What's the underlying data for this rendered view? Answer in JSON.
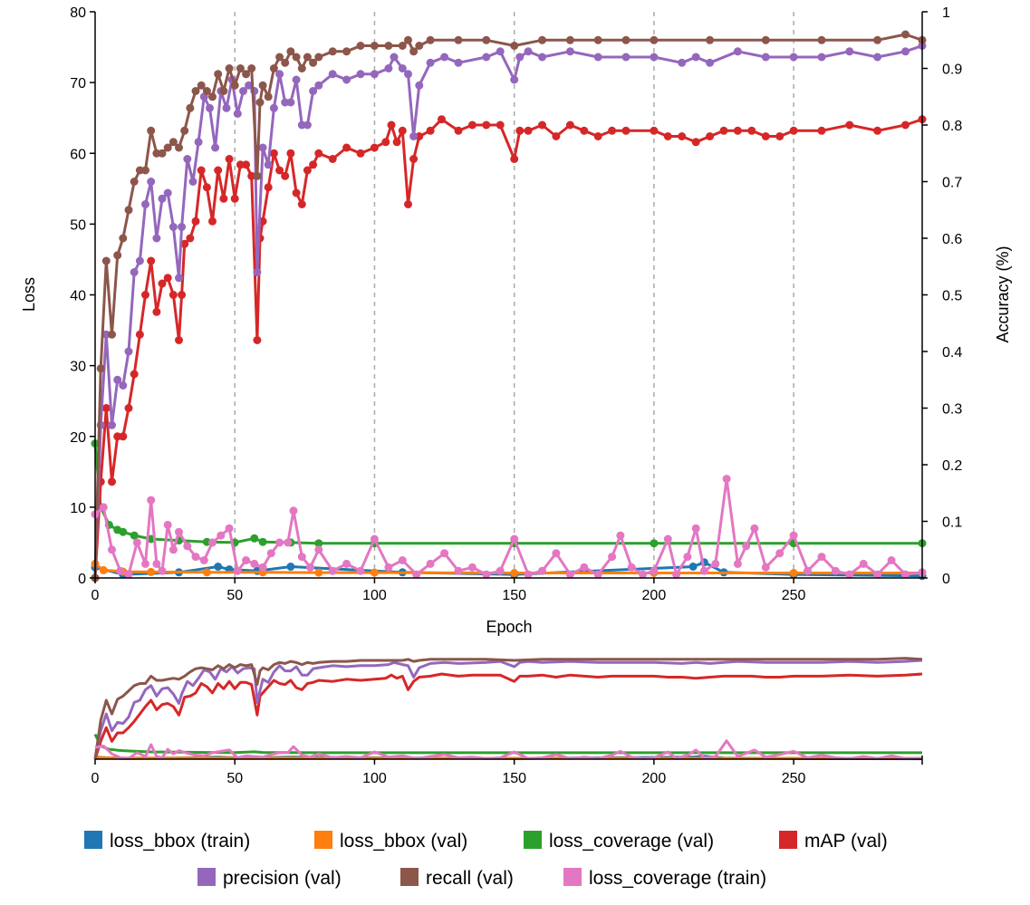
{
  "chart_data": {
    "type": "line",
    "xlabel": "Epoch",
    "ylabel_left": "Loss",
    "ylabel_right": "Accuracy (%)",
    "xlim": [
      0,
      296
    ],
    "ylim_left": [
      0,
      80
    ],
    "ylim_right": [
      0,
      1
    ],
    "x_ticks": [
      0,
      50,
      100,
      150,
      200,
      250
    ],
    "y_left_ticks": [
      0,
      10,
      20,
      30,
      40,
      50,
      60,
      70,
      80
    ],
    "y_right_ticks": [
      0,
      0.1,
      0.2,
      0.3,
      0.4,
      0.5,
      0.6,
      0.7,
      0.8,
      0.9,
      1
    ],
    "y_right_tick_labels": [
      "0",
      "0.1",
      "0.2",
      "0.3",
      "0.4",
      "0.5",
      "0.6",
      "0.7",
      "0.8",
      "0.9",
      "1"
    ],
    "x_gridlines": [
      50,
      100,
      150,
      200,
      250
    ],
    "legend_position": "bottom",
    "series": [
      {
        "name": "loss_bbox (train)",
        "color": "#1f77b4",
        "axis": "left",
        "x": [
          0,
          10,
          30,
          44,
          48,
          58,
          70,
          110,
          150,
          214,
          218,
          225,
          250,
          296
        ],
        "y": [
          1.5,
          0.5,
          0.8,
          1.6,
          1.2,
          1.0,
          1.6,
          0.8,
          0.5,
          1.6,
          2.2,
          0.8,
          0.5,
          0.3
        ]
      },
      {
        "name": "loss_bbox (val)",
        "color": "#ff7f0e",
        "axis": "left",
        "x": [
          0,
          3,
          10,
          20,
          40,
          60,
          80,
          100,
          150,
          200,
          250,
          296
        ],
        "y": [
          2.0,
          1.1,
          0.9,
          0.85,
          0.8,
          0.8,
          0.75,
          0.75,
          0.7,
          0.7,
          0.7,
          0.7
        ]
      },
      {
        "name": "loss_coverage (val)",
        "color": "#2ca02c",
        "axis": "left",
        "x": [
          0,
          2,
          5,
          8,
          10,
          14,
          20,
          30,
          40,
          50,
          57,
          60,
          70,
          80,
          100,
          150,
          200,
          250,
          296
        ],
        "y": [
          19.0,
          10.0,
          7.5,
          6.8,
          6.5,
          6.0,
          5.5,
          5.3,
          5.1,
          5.0,
          5.6,
          5.1,
          5.0,
          4.9,
          4.9,
          4.9,
          4.9,
          4.9,
          4.9
        ]
      },
      {
        "name": "mAP (val)",
        "color": "#d62728",
        "axis": "right",
        "x": [
          0,
          2,
          4,
          6,
          8,
          10,
          12,
          14,
          16,
          18,
          20,
          22,
          24,
          26,
          28,
          30,
          31,
          32,
          34,
          36,
          38,
          40,
          42,
          44,
          46,
          48,
          50,
          52,
          54,
          56,
          58,
          59,
          60,
          62,
          64,
          66,
          68,
          70,
          72,
          74,
          76,
          78,
          80,
          85,
          90,
          95,
          100,
          104,
          106,
          108,
          110,
          112,
          114,
          116,
          120,
          124,
          130,
          135,
          140,
          145,
          150,
          152,
          155,
          160,
          165,
          170,
          175,
          180,
          185,
          190,
          200,
          205,
          210,
          215,
          220,
          225,
          230,
          235,
          240,
          245,
          250,
          260,
          270,
          280,
          290,
          296
        ],
        "y": [
          0.0,
          0.17,
          0.3,
          0.17,
          0.25,
          0.25,
          0.3,
          0.36,
          0.43,
          0.5,
          0.56,
          0.47,
          0.52,
          0.53,
          0.5,
          0.42,
          0.5,
          0.59,
          0.6,
          0.63,
          0.72,
          0.69,
          0.63,
          0.72,
          0.67,
          0.74,
          0.67,
          0.73,
          0.73,
          0.71,
          0.42,
          0.6,
          0.63,
          0.69,
          0.75,
          0.72,
          0.71,
          0.75,
          0.68,
          0.66,
          0.72,
          0.73,
          0.75,
          0.74,
          0.76,
          0.75,
          0.76,
          0.77,
          0.8,
          0.77,
          0.79,
          0.66,
          0.74,
          0.78,
          0.79,
          0.81,
          0.79,
          0.8,
          0.8,
          0.8,
          0.74,
          0.79,
          0.79,
          0.8,
          0.78,
          0.8,
          0.79,
          0.78,
          0.79,
          0.79,
          0.79,
          0.78,
          0.78,
          0.77,
          0.78,
          0.79,
          0.79,
          0.79,
          0.78,
          0.78,
          0.79,
          0.79,
          0.8,
          0.79,
          0.8,
          0.81
        ]
      },
      {
        "name": "precision (val)",
        "color": "#9467bd",
        "axis": "right",
        "x": [
          0,
          2,
          4,
          6,
          8,
          10,
          12,
          14,
          16,
          18,
          20,
          22,
          24,
          26,
          28,
          30,
          31,
          33,
          35,
          37,
          39,
          41,
          43,
          45,
          47,
          49,
          51,
          53,
          55,
          57,
          58,
          60,
          62,
          64,
          66,
          68,
          70,
          72,
          74,
          76,
          78,
          80,
          85,
          90,
          95,
          100,
          105,
          107,
          110,
          112,
          114,
          116,
          120,
          125,
          130,
          140,
          145,
          150,
          152,
          155,
          160,
          170,
          180,
          190,
          200,
          210,
          215,
          220,
          230,
          240,
          250,
          260,
          270,
          280,
          290,
          296
        ],
        "y": [
          0.0,
          0.27,
          0.43,
          0.27,
          0.35,
          0.34,
          0.4,
          0.54,
          0.56,
          0.66,
          0.7,
          0.6,
          0.67,
          0.68,
          0.62,
          0.53,
          0.62,
          0.74,
          0.7,
          0.77,
          0.85,
          0.83,
          0.76,
          0.86,
          0.83,
          0.88,
          0.82,
          0.86,
          0.87,
          0.86,
          0.54,
          0.76,
          0.73,
          0.83,
          0.89,
          0.84,
          0.84,
          0.88,
          0.8,
          0.8,
          0.86,
          0.87,
          0.89,
          0.88,
          0.89,
          0.89,
          0.9,
          0.92,
          0.9,
          0.89,
          0.78,
          0.87,
          0.91,
          0.92,
          0.91,
          0.92,
          0.93,
          0.88,
          0.92,
          0.93,
          0.92,
          0.93,
          0.92,
          0.92,
          0.92,
          0.91,
          0.92,
          0.91,
          0.93,
          0.92,
          0.92,
          0.92,
          0.93,
          0.92,
          0.93,
          0.94
        ]
      },
      {
        "name": "recall (val)",
        "color": "#8c564b",
        "axis": "right",
        "x": [
          0,
          2,
          4,
          6,
          8,
          10,
          12,
          14,
          16,
          18,
          20,
          22,
          24,
          26,
          28,
          30,
          32,
          34,
          36,
          38,
          40,
          42,
          44,
          46,
          48,
          50,
          52,
          54,
          56,
          58,
          59,
          60,
          62,
          64,
          66,
          68,
          70,
          72,
          74,
          76,
          78,
          80,
          85,
          90,
          95,
          100,
          105,
          110,
          112,
          114,
          116,
          120,
          130,
          140,
          150,
          160,
          170,
          180,
          190,
          200,
          220,
          240,
          260,
          280,
          290,
          296
        ],
        "y": [
          0.0,
          0.37,
          0.56,
          0.43,
          0.57,
          0.6,
          0.65,
          0.7,
          0.72,
          0.72,
          0.79,
          0.75,
          0.75,
          0.76,
          0.77,
          0.76,
          0.79,
          0.83,
          0.86,
          0.87,
          0.86,
          0.85,
          0.89,
          0.86,
          0.9,
          0.87,
          0.9,
          0.89,
          0.9,
          0.71,
          0.84,
          0.87,
          0.85,
          0.9,
          0.92,
          0.91,
          0.93,
          0.92,
          0.9,
          0.92,
          0.91,
          0.92,
          0.93,
          0.93,
          0.94,
          0.94,
          0.94,
          0.94,
          0.95,
          0.93,
          0.94,
          0.95,
          0.95,
          0.95,
          0.94,
          0.95,
          0.95,
          0.95,
          0.95,
          0.95,
          0.95,
          0.95,
          0.95,
          0.95,
          0.96,
          0.95
        ]
      },
      {
        "name": "loss_coverage (train)",
        "color": "#e377c2",
        "axis": "left",
        "x": [
          0,
          3,
          6,
          9,
          12,
          15,
          18,
          20,
          22,
          24,
          26,
          28,
          30,
          33,
          36,
          39,
          42,
          45,
          48,
          51,
          54,
          57,
          60,
          63,
          66,
          69,
          71,
          74,
          77,
          80,
          85,
          90,
          95,
          100,
          105,
          110,
          115,
          120,
          125,
          130,
          135,
          140,
          145,
          150,
          155,
          160,
          165,
          170,
          175,
          180,
          185,
          188,
          192,
          196,
          200,
          205,
          208,
          212,
          215,
          218,
          222,
          226,
          230,
          233,
          236,
          240,
          245,
          250,
          255,
          260,
          265,
          270,
          275,
          280,
          285,
          290,
          296
        ],
        "y": [
          9.0,
          10.0,
          4.0,
          1.0,
          0.5,
          5.0,
          2.0,
          11.0,
          2.0,
          1.0,
          7.5,
          4.0,
          6.5,
          4.5,
          3.0,
          2.5,
          5.0,
          6.0,
          7.0,
          1.0,
          2.5,
          2.0,
          1.5,
          3.5,
          5.0,
          5.0,
          9.5,
          3.0,
          1.5,
          4.0,
          1.0,
          2.0,
          1.0,
          5.5,
          1.5,
          2.5,
          0.5,
          2.0,
          3.5,
          1.0,
          1.5,
          0.5,
          1.0,
          5.5,
          0.5,
          1.0,
          3.5,
          0.5,
          1.5,
          0.5,
          3.0,
          6.0,
          1.5,
          0.5,
          1.0,
          5.5,
          0.5,
          3.0,
          7.0,
          1.0,
          2.0,
          14.0,
          2.0,
          4.5,
          7.0,
          1.5,
          3.5,
          6.0,
          1.0,
          3.0,
          1.0,
          0.5,
          2.0,
          0.5,
          2.5,
          0.5,
          0.8
        ]
      }
    ]
  }
}
